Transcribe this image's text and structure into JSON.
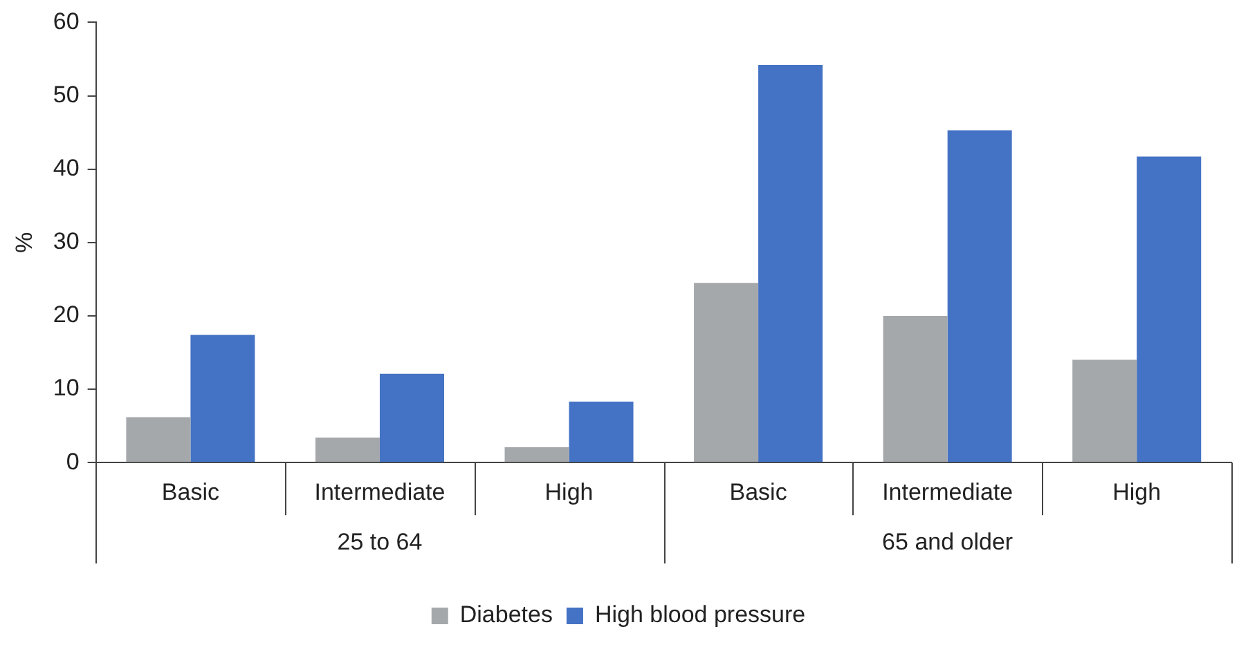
{
  "chart_data": {
    "type": "bar",
    "ylabel": "%",
    "categories": [
      "Basic",
      "Intermediate",
      "High",
      "Basic",
      "Intermediate",
      "High"
    ],
    "annotations": [
      "25 to 64",
      "65 and older"
    ],
    "series": [
      {
        "name": "Diabetes",
        "color": "#a5a8ab",
        "values": [
          6.2,
          3.4,
          2.1,
          24.5,
          20,
          14
        ]
      },
      {
        "name": "High blood pressure",
        "color": "#4472c4",
        "values": [
          17.4,
          12.1,
          8.3,
          54.2,
          45.3,
          41.7
        ]
      }
    ],
    "ylim": [
      0,
      60
    ],
    "yticks": [
      0,
      10,
      20,
      30,
      40,
      50,
      60
    ],
    "grid": false,
    "legend": "bottom"
  }
}
